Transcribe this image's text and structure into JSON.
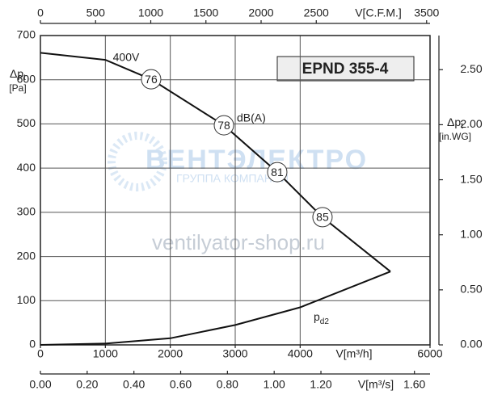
{
  "chart_data": {
    "type": "line",
    "title": "EPND 355-4",
    "xlabel": "V[m³/h]",
    "xlim": [
      0,
      6000
    ],
    "xticks": [
      0,
      1000,
      2000,
      3000,
      4000,
      6000
    ],
    "ylabel": {
      "main": "Δp",
      "sub": "t",
      "unit": "[Pa]"
    },
    "ylim": [
      0,
      700
    ],
    "yticks": [
      0,
      100,
      200,
      300,
      400,
      500,
      600,
      700
    ],
    "y2label": {
      "main": "Δp",
      "sub": "t",
      "unit": "[in.WG]"
    },
    "y2lim": [
      0,
      2.81
    ],
    "y2ticks": [
      {
        "value": 0,
        "label": "0.00"
      },
      {
        "value": 0.5,
        "label": "0.50"
      },
      {
        "value": 1,
        "label": "1.00"
      },
      {
        "value": 1.5,
        "label": "1.50"
      },
      {
        "value": 2,
        "label": "2.00"
      },
      {
        "value": 2.5,
        "label": "2.50"
      }
    ],
    "top_axis": {
      "label": "V[C.F.M.]",
      "lim": [
        0,
        3531
      ],
      "ticks": [
        0,
        500,
        1000,
        1500,
        2000,
        2500,
        3500
      ]
    },
    "bottom_axis": {
      "label": "V[m³/s]",
      "lim": [
        0,
        1.6667
      ],
      "ticks": [
        {
          "value": 0,
          "label": "0.00"
        },
        {
          "value": 0.2,
          "label": "0.20"
        },
        {
          "value": 0.4,
          "label": "0.40"
        },
        {
          "value": 0.6,
          "label": "0.60"
        },
        {
          "value": 0.8,
          "label": "0.80"
        },
        {
          "value": 1,
          "label": "1.00"
        },
        {
          "value": 1.2,
          "label": "1.20"
        },
        {
          "value": 1.6,
          "label": "1.60"
        }
      ]
    },
    "grid": true,
    "series": [
      {
        "name": "400V",
        "color": "#111111",
        "x": [
          0,
          1000,
          1705,
          2826,
          3647,
          4344,
          5390
        ],
        "values": [
          661,
          645,
          601,
          497,
          391,
          289,
          166
        ]
      },
      {
        "name": "p",
        "name_sub": "d2",
        "color": "#111111",
        "x": [
          0,
          1000,
          2000,
          3000,
          4000,
          5390
        ],
        "values": [
          0,
          3,
          15,
          45,
          85,
          166
        ]
      }
    ],
    "noise_label": "dB(A)",
    "noise_points": [
      {
        "x": 1705,
        "y": 601,
        "label": 76
      },
      {
        "x": 2826,
        "y": 497,
        "label": 78
      },
      {
        "x": 3647,
        "y": 391,
        "label": 81
      },
      {
        "x": 4344,
        "y": 289,
        "label": 85
      }
    ],
    "watermark": {
      "brand": "ВЕНТЭЛЕКТРО",
      "group": "ГРУППА КОМПАНИЙ",
      "site": "ventilyator-shop.ru"
    }
  }
}
